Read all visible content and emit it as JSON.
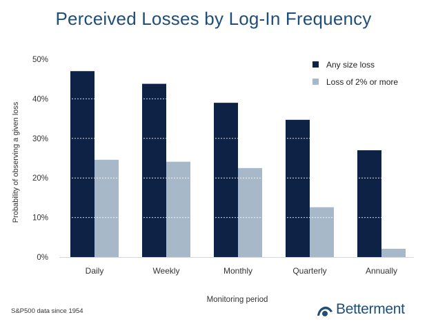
{
  "title": "Perceived Losses by Log-In Frequency",
  "source_note": "S&P500 data since 1954",
  "brand": {
    "name": "Betterment",
    "icon": "betterment-logo-icon"
  },
  "colors": {
    "title": "#1f4e79",
    "series_dark": "#0e2245",
    "series_light": "#a7b8c8",
    "gridline": "#ffffff",
    "axis_text": "#333333"
  },
  "chart_data": {
    "type": "bar",
    "title": "Perceived Losses by Log-In Frequency",
    "xlabel": "Monitoring period",
    "ylabel": "Probability of observing a given loss",
    "categories": [
      "Daily",
      "Weekly",
      "Monthly",
      "Quarterly",
      "Annually"
    ],
    "series": [
      {
        "name": "Any size loss",
        "values": [
          47,
          43.8,
          39,
          34.7,
          27
        ],
        "color": "#0e2245"
      },
      {
        "name": "Loss of 2% or more",
        "values": [
          24.6,
          24.1,
          22.5,
          12.6,
          2.1
        ],
        "color": "#a7b8c8"
      }
    ],
    "ylim": [
      0,
      50
    ],
    "yticks": [
      "0%",
      "10%",
      "20%",
      "30%",
      "40%",
      "50%"
    ],
    "ytick_values": [
      0,
      10,
      20,
      30,
      40,
      50
    ],
    "grid": "dotted white horizontal lines over bars",
    "legend_position": "top-right"
  }
}
